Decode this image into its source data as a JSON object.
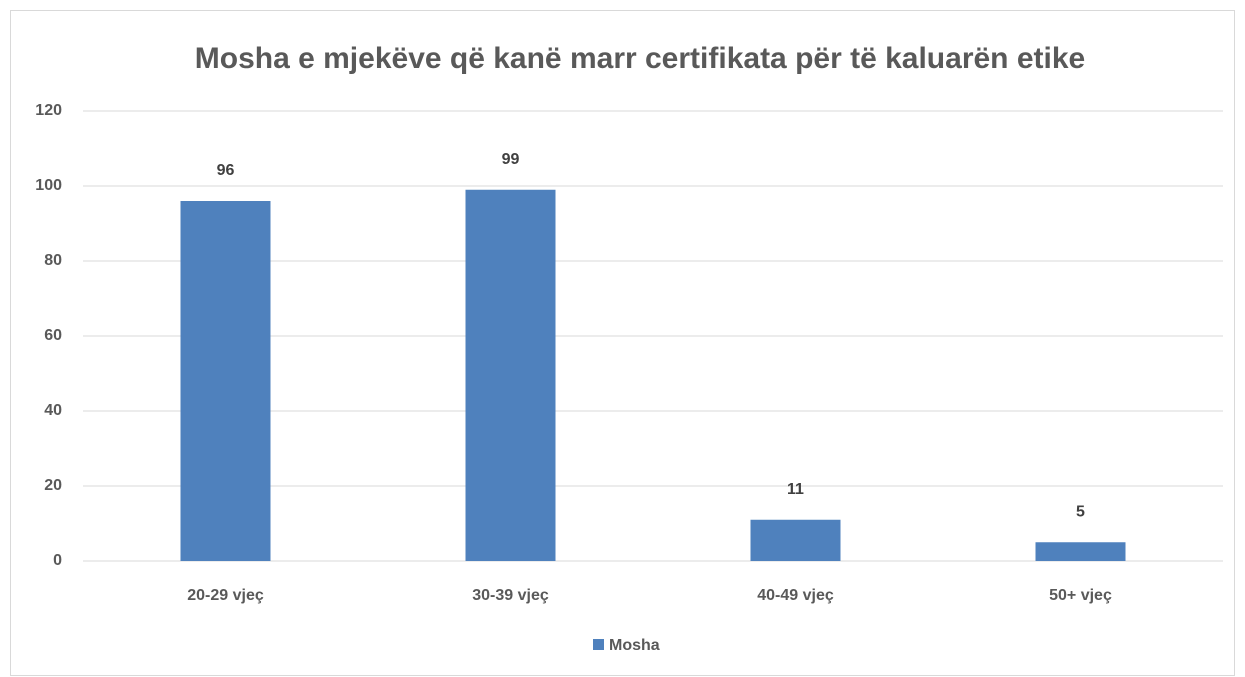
{
  "chart_data": {
    "type": "bar",
    "title": "Mosha e mjekëve që kanë marr certifikata për të kaluarën etike",
    "categories": [
      "20-29 vjeç",
      "30-39 vjeç",
      "40-49 vjeç",
      "50+ vjeç"
    ],
    "series": [
      {
        "name": "Mosha",
        "color": "#4f81bd",
        "values": [
          96,
          99,
          11,
          5
        ]
      }
    ],
    "ylim": [
      0,
      120
    ],
    "yticks": [
      0,
      20,
      40,
      60,
      80,
      100,
      120
    ],
    "grid": true,
    "legend": "bottom"
  }
}
